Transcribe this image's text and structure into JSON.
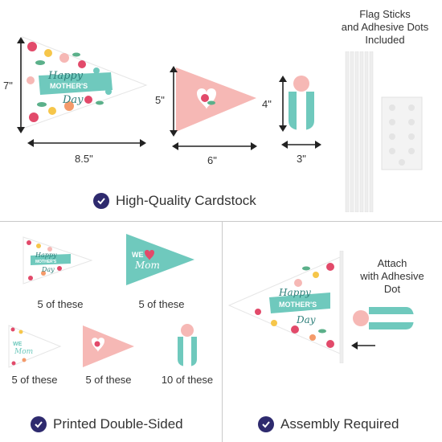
{
  "top": {
    "dims": {
      "large_height": "7\"",
      "large_width": "8.5\"",
      "medium_height": "5\"",
      "medium_width": "6\"",
      "topper_height": "4\"",
      "topper_width": "3\""
    },
    "flag_sticks_title": "Flag Sticks\nand Adhesive Dots\nIncluded",
    "feature_label": "High-Quality Cardstock",
    "banner_text": {
      "happy": "Happy",
      "mothers": "MOTHER'S",
      "day": "Day"
    }
  },
  "bottom_left": {
    "items": [
      {
        "caption": "5 of these"
      },
      {
        "caption": "5 of these"
      },
      {
        "caption": "5 of these"
      },
      {
        "caption": "5 of these"
      },
      {
        "caption": "10 of these"
      }
    ],
    "we_mom_we": "WE",
    "we_mom_mom": "Mom",
    "feature_label": "Printed Double-Sided"
  },
  "bottom_right": {
    "attach_label": "Attach\nwith Adhesive\nDot",
    "feature_label": "Assembly Required"
  },
  "colors": {
    "accent_navy": "#2e2a6e",
    "teal": "#6fc9bd",
    "pink": "#f6b8b5",
    "rose": "#e24a6a"
  },
  "icons": [
    "check-icon",
    "arrow-left-icon",
    "heart-icon",
    "flower-icon"
  ]
}
